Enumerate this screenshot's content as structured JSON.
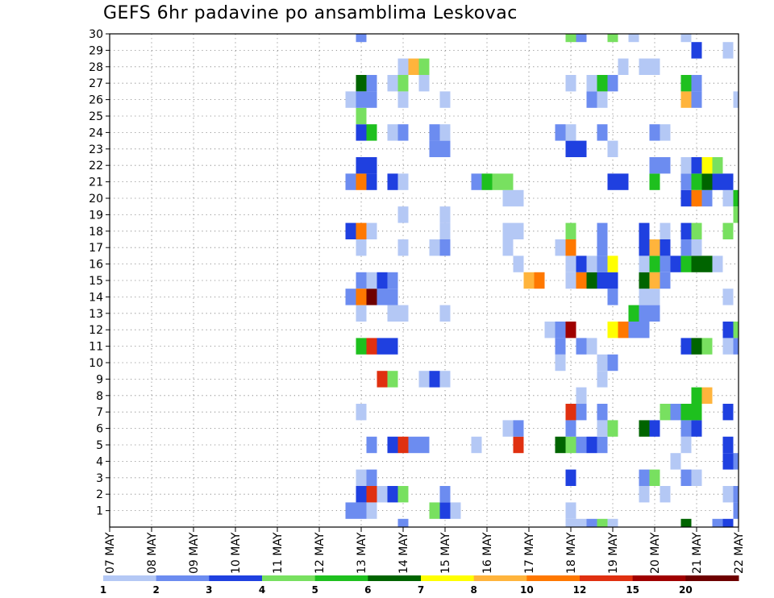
{
  "title": "GEFS 6hr padavine po ansamblima Leskovac",
  "chart_data": {
    "type": "heatmap",
    "title": "GEFS 6hr padavine po ansamblima Leskovac",
    "xlabel": "",
    "ylabel": "",
    "x_tick_labels": [
      "07 MAY",
      "08 MAY",
      "09 MAY",
      "10 MAY",
      "11 MAY",
      "12 MAY",
      "13 MAY",
      "14 MAY",
      "15 MAY",
      "16 MAY",
      "17 MAY",
      "18 MAY",
      "19 MAY",
      "20 MAY",
      "21 MAY",
      "22 MAY"
    ],
    "x_range_days": [
      0,
      15
    ],
    "y_tick_labels": [
      "1",
      "2",
      "3",
      "4",
      "5",
      "6",
      "7",
      "8",
      "9",
      "10",
      "11",
      "12",
      "13",
      "14",
      "15",
      "16",
      "17",
      "18",
      "19",
      "20",
      "21",
      "22",
      "23",
      "24",
      "25",
      "26",
      "27",
      "28",
      "29",
      "30"
    ],
    "y_range": [
      0,
      30
    ],
    "grid": true,
    "step_hours": 6,
    "colorbar": {
      "levels": [
        "1",
        "2",
        "3",
        "4",
        "5",
        "6",
        "7",
        "8",
        "10",
        "12",
        "15",
        "20"
      ],
      "colors": [
        "#b4c8f5",
        "#6c8cf0",
        "#1f40e0",
        "#78e060",
        "#1ec01e",
        "#006400",
        "#ffff00",
        "#ffb43c",
        "#ff7800",
        "#e03010",
        "#a00000",
        "#6e0000"
      ]
    },
    "data_note_units": "x = days since 07 MAY 00UTC (6-hourly steps), y = ensemble member, c = colorbar class index 1..12",
    "cells": [
      {
        "x": 6.0,
        "y": 1,
        "c": 2
      },
      {
        "x": 6.0,
        "y": 2,
        "c": 3
      },
      {
        "x": 6.0,
        "y": 3,
        "c": 1
      },
      {
        "x": 6.0,
        "y": 7,
        "c": 1
      },
      {
        "x": 6.0,
        "y": 13,
        "c": 1
      },
      {
        "x": 6.0,
        "y": 15,
        "c": 2
      },
      {
        "x": 6.0,
        "y": 17,
        "c": 1
      },
      {
        "x": 6.0,
        "y": 24,
        "c": 3
      },
      {
        "x": 6.0,
        "y": 27,
        "c": 6
      },
      {
        "x": 6.0,
        "y": 30,
        "c": 2
      },
      {
        "x": 5.75,
        "y": 1,
        "c": 2
      },
      {
        "x": 5.75,
        "y": 14,
        "c": 2
      },
      {
        "x": 5.75,
        "y": 18,
        "c": 3
      },
      {
        "x": 5.75,
        "y": 21,
        "c": 2
      },
      {
        "x": 5.75,
        "y": 26,
        "c": 1
      },
      {
        "x": 6.0,
        "y": 11,
        "c": 5
      },
      {
        "x": 6.0,
        "y": 14,
        "c": 9
      },
      {
        "x": 6.0,
        "y": 18,
        "c": 9
      },
      {
        "x": 6.0,
        "y": 21,
        "c": 9
      },
      {
        "x": 6.0,
        "y": 22,
        "c": 3
      },
      {
        "x": 6.0,
        "y": 25,
        "c": 4
      },
      {
        "x": 6.0,
        "y": 26,
        "c": 2
      },
      {
        "x": 6.25,
        "y": 1,
        "c": 1
      },
      {
        "x": 6.25,
        "y": 2,
        "c": 10
      },
      {
        "x": 6.25,
        "y": 3,
        "c": 2
      },
      {
        "x": 6.25,
        "y": 5,
        "c": 2
      },
      {
        "x": 6.25,
        "y": 11,
        "c": 10
      },
      {
        "x": 6.25,
        "y": 14,
        "c": 12
      },
      {
        "x": 6.25,
        "y": 15,
        "c": 1
      },
      {
        "x": 6.25,
        "y": 18,
        "c": 1
      },
      {
        "x": 6.25,
        "y": 21,
        "c": 3
      },
      {
        "x": 6.25,
        "y": 22,
        "c": 3
      },
      {
        "x": 6.25,
        "y": 24,
        "c": 5
      },
      {
        "x": 6.25,
        "y": 26,
        "c": 2
      },
      {
        "x": 6.25,
        "y": 27,
        "c": 2
      },
      {
        "x": 6.5,
        "y": 2,
        "c": 1
      },
      {
        "x": 6.5,
        "y": 9,
        "c": 10
      },
      {
        "x": 6.5,
        "y": 11,
        "c": 3
      },
      {
        "x": 6.5,
        "y": 14,
        "c": 2
      },
      {
        "x": 6.5,
        "y": 15,
        "c": 3
      },
      {
        "x": 6.75,
        "y": 2,
        "c": 3
      },
      {
        "x": 6.75,
        "y": 5,
        "c": 3
      },
      {
        "x": 6.75,
        "y": 9,
        "c": 4
      },
      {
        "x": 6.75,
        "y": 11,
        "c": 3
      },
      {
        "x": 6.75,
        "y": 13,
        "c": 1
      },
      {
        "x": 6.75,
        "y": 14,
        "c": 2
      },
      {
        "x": 6.75,
        "y": 15,
        "c": 2
      },
      {
        "x": 6.75,
        "y": 21,
        "c": 3
      },
      {
        "x": 6.75,
        "y": 24,
        "c": 1
      },
      {
        "x": 6.75,
        "y": 27,
        "c": 1
      },
      {
        "x": 7.0,
        "y": 2,
        "c": 4
      },
      {
        "x": 7.0,
        "y": 5,
        "c": 10
      },
      {
        "x": 7.0,
        "y": 13,
        "c": 1
      },
      {
        "x": 7.0,
        "y": 17,
        "c": 1
      },
      {
        "x": 7.0,
        "y": 19,
        "c": 1
      },
      {
        "x": 7.0,
        "y": 21,
        "c": 1
      },
      {
        "x": 7.0,
        "y": 24,
        "c": 2
      },
      {
        "x": 7.0,
        "y": 26,
        "c": 1
      },
      {
        "x": 7.0,
        "y": 27,
        "c": 4
      },
      {
        "x": 7.0,
        "y": 28,
        "c": 1
      },
      {
        "x": 7.0,
        "y": 0,
        "c": 2
      },
      {
        "x": 7.25,
        "y": 5,
        "c": 2
      },
      {
        "x": 7.25,
        "y": 28,
        "c": 8
      },
      {
        "x": 7.5,
        "y": 5,
        "c": 2
      },
      {
        "x": 7.5,
        "y": 9,
        "c": 1
      },
      {
        "x": 7.5,
        "y": 27,
        "c": 1
      },
      {
        "x": 7.5,
        "y": 28,
        "c": 4
      },
      {
        "x": 7.75,
        "y": 1,
        "c": 4
      },
      {
        "x": 7.75,
        "y": 9,
        "c": 3
      },
      {
        "x": 7.75,
        "y": 17,
        "c": 1
      },
      {
        "x": 7.75,
        "y": 23,
        "c": 2
      },
      {
        "x": 7.75,
        "y": 24,
        "c": 2
      },
      {
        "x": 8.0,
        "y": 1,
        "c": 3
      },
      {
        "x": 8.0,
        "y": 2,
        "c": 2
      },
      {
        "x": 8.0,
        "y": 9,
        "c": 1
      },
      {
        "x": 8.0,
        "y": 13,
        "c": 1
      },
      {
        "x": 8.0,
        "y": 17,
        "c": 2
      },
      {
        "x": 8.0,
        "y": 18,
        "c": 1
      },
      {
        "x": 8.0,
        "y": 19,
        "c": 1
      },
      {
        "x": 8.0,
        "y": 23,
        "c": 2
      },
      {
        "x": 8.0,
        "y": 24,
        "c": 1
      },
      {
        "x": 8.0,
        "y": 26,
        "c": 1
      },
      {
        "x": 8.25,
        "y": 1,
        "c": 1
      },
      {
        "x": 8.75,
        "y": 5,
        "c": 1
      },
      {
        "x": 8.75,
        "y": 21,
        "c": 2
      },
      {
        "x": 9.0,
        "y": 21,
        "c": 5
      },
      {
        "x": 9.25,
        "y": 21,
        "c": 4
      },
      {
        "x": 9.5,
        "y": 6,
        "c": 1
      },
      {
        "x": 9.5,
        "y": 17,
        "c": 1
      },
      {
        "x": 9.5,
        "y": 18,
        "c": 1
      },
      {
        "x": 9.5,
        "y": 20,
        "c": 1
      },
      {
        "x": 9.5,
        "y": 21,
        "c": 4
      },
      {
        "x": 9.75,
        "y": 5,
        "c": 10
      },
      {
        "x": 9.75,
        "y": 6,
        "c": 2
      },
      {
        "x": 9.75,
        "y": 16,
        "c": 1
      },
      {
        "x": 9.75,
        "y": 18,
        "c": 1
      },
      {
        "x": 9.75,
        "y": 20,
        "c": 1
      },
      {
        "x": 10.0,
        "y": 15,
        "c": 8
      },
      {
        "x": 10.25,
        "y": 15,
        "c": 9
      },
      {
        "x": 10.5,
        "y": 12,
        "c": 1
      },
      {
        "x": 10.75,
        "y": 5,
        "c": 6
      },
      {
        "x": 10.75,
        "y": 10,
        "c": 1
      },
      {
        "x": 10.75,
        "y": 11,
        "c": 2
      },
      {
        "x": 10.75,
        "y": 12,
        "c": 2
      },
      {
        "x": 10.75,
        "y": 17,
        "c": 1
      },
      {
        "x": 10.75,
        "y": 24,
        "c": 2
      },
      {
        "x": 11.0,
        "y": 0,
        "c": 1
      },
      {
        "x": 11.0,
        "y": 1,
        "c": 1
      },
      {
        "x": 11.0,
        "y": 3,
        "c": 3
      },
      {
        "x": 11.0,
        "y": 5,
        "c": 4
      },
      {
        "x": 11.0,
        "y": 6,
        "c": 2
      },
      {
        "x": 11.0,
        "y": 7,
        "c": 10
      },
      {
        "x": 11.0,
        "y": 12,
        "c": 11
      },
      {
        "x": 11.0,
        "y": 15,
        "c": 1
      },
      {
        "x": 11.0,
        "y": 16,
        "c": 1
      },
      {
        "x": 11.0,
        "y": 17,
        "c": 9
      },
      {
        "x": 11.0,
        "y": 18,
        "c": 4
      },
      {
        "x": 11.0,
        "y": 23,
        "c": 3
      },
      {
        "x": 11.0,
        "y": 24,
        "c": 1
      },
      {
        "x": 11.0,
        "y": 27,
        "c": 1
      },
      {
        "x": 11.0,
        "y": 30,
        "c": 4
      },
      {
        "x": 11.25,
        "y": 0,
        "c": 1
      },
      {
        "x": 11.25,
        "y": 5,
        "c": 2
      },
      {
        "x": 11.25,
        "y": 7,
        "c": 2
      },
      {
        "x": 11.25,
        "y": 8,
        "c": 1
      },
      {
        "x": 11.25,
        "y": 11,
        "c": 2
      },
      {
        "x": 11.25,
        "y": 15,
        "c": 9
      },
      {
        "x": 11.25,
        "y": 16,
        "c": 3
      },
      {
        "x": 11.25,
        "y": 23,
        "c": 3
      },
      {
        "x": 11.25,
        "y": 30,
        "c": 2
      },
      {
        "x": 11.5,
        "y": 0,
        "c": 2
      },
      {
        "x": 11.5,
        "y": 5,
        "c": 3
      },
      {
        "x": 11.5,
        "y": 11,
        "c": 1
      },
      {
        "x": 11.5,
        "y": 15,
        "c": 6
      },
      {
        "x": 11.5,
        "y": 16,
        "c": 1
      },
      {
        "x": 11.5,
        "y": 26,
        "c": 2
      },
      {
        "x": 11.5,
        "y": 27,
        "c": 1
      },
      {
        "x": 11.75,
        "y": 0,
        "c": 4
      },
      {
        "x": 11.75,
        "y": 5,
        "c": 2
      },
      {
        "x": 11.75,
        "y": 6,
        "c": 1
      },
      {
        "x": 11.75,
        "y": 7,
        "c": 2
      },
      {
        "x": 11.75,
        "y": 9,
        "c": 1
      },
      {
        "x": 11.75,
        "y": 10,
        "c": 1
      },
      {
        "x": 11.75,
        "y": 15,
        "c": 3
      },
      {
        "x": 11.75,
        "y": 16,
        "c": 2
      },
      {
        "x": 11.75,
        "y": 17,
        "c": 2
      },
      {
        "x": 11.75,
        "y": 18,
        "c": 2
      },
      {
        "x": 11.75,
        "y": 24,
        "c": 2
      },
      {
        "x": 11.75,
        "y": 26,
        "c": 1
      },
      {
        "x": 11.75,
        "y": 27,
        "c": 5
      },
      {
        "x": 12.0,
        "y": 0,
        "c": 1
      },
      {
        "x": 12.0,
        "y": 6,
        "c": 4
      },
      {
        "x": 12.0,
        "y": 10,
        "c": 2
      },
      {
        "x": 12.0,
        "y": 12,
        "c": 7
      },
      {
        "x": 12.0,
        "y": 14,
        "c": 2
      },
      {
        "x": 12.0,
        "y": 15,
        "c": 3
      },
      {
        "x": 12.0,
        "y": 16,
        "c": 7
      },
      {
        "x": 12.0,
        "y": 21,
        "c": 3
      },
      {
        "x": 12.0,
        "y": 23,
        "c": 1
      },
      {
        "x": 12.0,
        "y": 27,
        "c": 2
      },
      {
        "x": 12.0,
        "y": 30,
        "c": 4
      },
      {
        "x": 12.25,
        "y": 12,
        "c": 9
      },
      {
        "x": 12.25,
        "y": 21,
        "c": 3
      },
      {
        "x": 12.25,
        "y": 28,
        "c": 1
      },
      {
        "x": 12.5,
        "y": 12,
        "c": 2
      },
      {
        "x": 12.5,
        "y": 13,
        "c": 5
      },
      {
        "x": 12.5,
        "y": 30,
        "c": 1
      },
      {
        "x": 12.75,
        "y": 2,
        "c": 1
      },
      {
        "x": 12.75,
        "y": 3,
        "c": 2
      },
      {
        "x": 12.75,
        "y": 6,
        "c": 6
      },
      {
        "x": 12.75,
        "y": 12,
        "c": 2
      },
      {
        "x": 12.75,
        "y": 13,
        "c": 2
      },
      {
        "x": 12.75,
        "y": 14,
        "c": 1
      },
      {
        "x": 12.75,
        "y": 15,
        "c": 6
      },
      {
        "x": 12.75,
        "y": 16,
        "c": 1
      },
      {
        "x": 12.75,
        "y": 17,
        "c": 3
      },
      {
        "x": 12.75,
        "y": 18,
        "c": 3
      },
      {
        "x": 12.75,
        "y": 28,
        "c": 1
      },
      {
        "x": 13.0,
        "y": 3,
        "c": 4
      },
      {
        "x": 13.0,
        "y": 6,
        "c": 3
      },
      {
        "x": 13.0,
        "y": 13,
        "c": 2
      },
      {
        "x": 13.0,
        "y": 14,
        "c": 1
      },
      {
        "x": 13.0,
        "y": 15,
        "c": 8
      },
      {
        "x": 13.0,
        "y": 16,
        "c": 5
      },
      {
        "x": 13.0,
        "y": 17,
        "c": 8
      },
      {
        "x": 13.0,
        "y": 21,
        "c": 5
      },
      {
        "x": 13.0,
        "y": 22,
        "c": 2
      },
      {
        "x": 13.0,
        "y": 24,
        "c": 2
      },
      {
        "x": 13.0,
        "y": 28,
        "c": 1
      },
      {
        "x": 13.25,
        "y": 2,
        "c": 1
      },
      {
        "x": 13.25,
        "y": 7,
        "c": 4
      },
      {
        "x": 13.25,
        "y": 15,
        "c": 2
      },
      {
        "x": 13.25,
        "y": 16,
        "c": 2
      },
      {
        "x": 13.25,
        "y": 17,
        "c": 3
      },
      {
        "x": 13.25,
        "y": 18,
        "c": 1
      },
      {
        "x": 13.25,
        "y": 22,
        "c": 2
      },
      {
        "x": 13.25,
        "y": 24,
        "c": 1
      },
      {
        "x": 13.5,
        "y": 4,
        "c": 1
      },
      {
        "x": 13.5,
        "y": 7,
        "c": 2
      },
      {
        "x": 13.5,
        "y": 16,
        "c": 3
      },
      {
        "x": 13.75,
        "y": 0,
        "c": 6
      },
      {
        "x": 13.75,
        "y": 3,
        "c": 2
      },
      {
        "x": 13.75,
        "y": 5,
        "c": 1
      },
      {
        "x": 13.75,
        "y": 6,
        "c": 2
      },
      {
        "x": 13.75,
        "y": 7,
        "c": 5
      },
      {
        "x": 13.75,
        "y": 11,
        "c": 3
      },
      {
        "x": 13.75,
        "y": 16,
        "c": 5
      },
      {
        "x": 13.75,
        "y": 17,
        "c": 2
      },
      {
        "x": 13.75,
        "y": 18,
        "c": 3
      },
      {
        "x": 13.75,
        "y": 20,
        "c": 3
      },
      {
        "x": 13.75,
        "y": 21,
        "c": 2
      },
      {
        "x": 13.75,
        "y": 22,
        "c": 1
      },
      {
        "x": 13.75,
        "y": 26,
        "c": 8
      },
      {
        "x": 13.75,
        "y": 27,
        "c": 5
      },
      {
        "x": 13.75,
        "y": 30,
        "c": 1
      },
      {
        "x": 14.0,
        "y": 3,
        "c": 1
      },
      {
        "x": 14.0,
        "y": 6,
        "c": 3
      },
      {
        "x": 14.0,
        "y": 7,
        "c": 5
      },
      {
        "x": 14.0,
        "y": 8,
        "c": 5
      },
      {
        "x": 14.0,
        "y": 11,
        "c": 6
      },
      {
        "x": 14.0,
        "y": 16,
        "c": 6
      },
      {
        "x": 14.0,
        "y": 17,
        "c": 1
      },
      {
        "x": 14.0,
        "y": 18,
        "c": 4
      },
      {
        "x": 14.0,
        "y": 20,
        "c": 9
      },
      {
        "x": 14.0,
        "y": 21,
        "c": 5
      },
      {
        "x": 14.0,
        "y": 22,
        "c": 3
      },
      {
        "x": 14.0,
        "y": 26,
        "c": 2
      },
      {
        "x": 14.0,
        "y": 27,
        "c": 2
      },
      {
        "x": 14.0,
        "y": 29,
        "c": 3
      },
      {
        "x": 14.25,
        "y": 8,
        "c": 8
      },
      {
        "x": 14.25,
        "y": 11,
        "c": 4
      },
      {
        "x": 14.25,
        "y": 16,
        "c": 6
      },
      {
        "x": 14.25,
        "y": 20,
        "c": 2
      },
      {
        "x": 14.25,
        "y": 21,
        "c": 6
      },
      {
        "x": 14.25,
        "y": 22,
        "c": 7
      },
      {
        "x": 14.5,
        "y": 0,
        "c": 2
      },
      {
        "x": 14.5,
        "y": 16,
        "c": 1
      },
      {
        "x": 14.5,
        "y": 21,
        "c": 3
      },
      {
        "x": 14.5,
        "y": 22,
        "c": 4
      },
      {
        "x": 14.75,
        "y": 0,
        "c": 3
      },
      {
        "x": 14.75,
        "y": 2,
        "c": 1
      },
      {
        "x": 14.75,
        "y": 4,
        "c": 3
      },
      {
        "x": 14.75,
        "y": 5,
        "c": 3
      },
      {
        "x": 14.75,
        "y": 7,
        "c": 3
      },
      {
        "x": 14.75,
        "y": 11,
        "c": 1
      },
      {
        "x": 14.75,
        "y": 12,
        "c": 3
      },
      {
        "x": 14.75,
        "y": 14,
        "c": 1
      },
      {
        "x": 14.75,
        "y": 18,
        "c": 4
      },
      {
        "x": 14.75,
        "y": 20,
        "c": 1
      },
      {
        "x": 14.75,
        "y": 21,
        "c": 3
      },
      {
        "x": 14.75,
        "y": 29,
        "c": 1
      },
      {
        "x": 15.0,
        "y": 1,
        "c": 2
      },
      {
        "x": 15.0,
        "y": 2,
        "c": 2
      },
      {
        "x": 15.0,
        "y": 4,
        "c": 2
      },
      {
        "x": 15.0,
        "y": 11,
        "c": 2
      },
      {
        "x": 15.0,
        "y": 12,
        "c": 4
      },
      {
        "x": 15.0,
        "y": 19,
        "c": 4
      },
      {
        "x": 15.0,
        "y": 20,
        "c": 5
      },
      {
        "x": 15.0,
        "y": 26,
        "c": 1
      }
    ]
  }
}
